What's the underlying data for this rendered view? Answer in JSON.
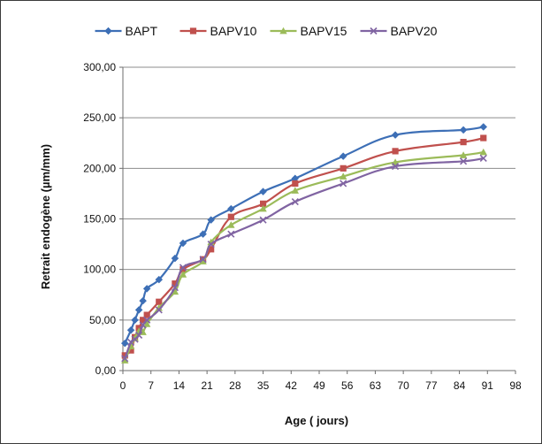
{
  "chart_data": {
    "type": "line",
    "title": "",
    "xlabel": "Age ( jours)",
    "ylabel": "Retrait endogène (µm/mm)",
    "xlim": [
      0,
      98
    ],
    "ylim": [
      0,
      300
    ],
    "x_ticks": [
      0,
      7,
      14,
      21,
      28,
      35,
      42,
      49,
      56,
      63,
      70,
      77,
      84,
      91,
      98
    ],
    "x_tick_labels": [
      "0",
      "7",
      "14",
      "21",
      "28",
      "35",
      "42",
      "49",
      "56",
      "63",
      "70",
      "77",
      "84",
      "91",
      "98"
    ],
    "y_ticks": [
      0,
      50,
      100,
      150,
      200,
      250,
      300
    ],
    "y_tick_labels": [
      "0,00",
      "50,00",
      "100,00",
      "150,00",
      "200,00",
      "250,00",
      "300,00"
    ],
    "grid": "horizontal",
    "legend_position": "top",
    "series": [
      {
        "name": "BAPT",
        "color": "#3d6fb6",
        "marker": "diamond",
        "x": [
          0.5,
          2,
          3,
          4,
          5,
          6,
          9,
          13,
          15,
          20,
          22,
          27,
          35,
          43,
          55,
          68,
          85,
          90
        ],
        "y": [
          27,
          40,
          50,
          60,
          69,
          81,
          90,
          111,
          126,
          135,
          149,
          160,
          177,
          190,
          212,
          233,
          238,
          241
        ]
      },
      {
        "name": "BAPV10",
        "color": "#c0504d",
        "marker": "square",
        "x": [
          0.5,
          2,
          3,
          4,
          5,
          6,
          9,
          13,
          15,
          20,
          22,
          27,
          35,
          43,
          55,
          68,
          85,
          90
        ],
        "y": [
          15,
          20,
          33,
          42,
          50,
          55,
          68,
          86,
          100,
          110,
          120,
          152,
          165,
          185,
          200,
          217,
          226,
          230
        ]
      },
      {
        "name": "BAPV15",
        "color": "#9bbb59",
        "marker": "triangle",
        "x": [
          0.5,
          2,
          3,
          4,
          5,
          6,
          9,
          13,
          15,
          20,
          22,
          27,
          35,
          43,
          55,
          68,
          85,
          90
        ],
        "y": [
          10,
          24,
          32,
          39,
          38,
          46,
          62,
          78,
          95,
          108,
          127,
          144,
          160,
          178,
          192,
          206,
          213,
          216
        ]
      },
      {
        "name": "BAPV20",
        "color": "#8064a2",
        "marker": "x",
        "x": [
          0.5,
          2,
          3,
          4,
          5,
          6,
          9,
          13,
          15,
          20,
          22,
          27,
          35,
          43,
          55,
          68,
          85,
          90
        ],
        "y": [
          12,
          28,
          31,
          35,
          45,
          50,
          60,
          82,
          102,
          110,
          125,
          135,
          149,
          167,
          185,
          202,
          207,
          210
        ]
      }
    ]
  }
}
